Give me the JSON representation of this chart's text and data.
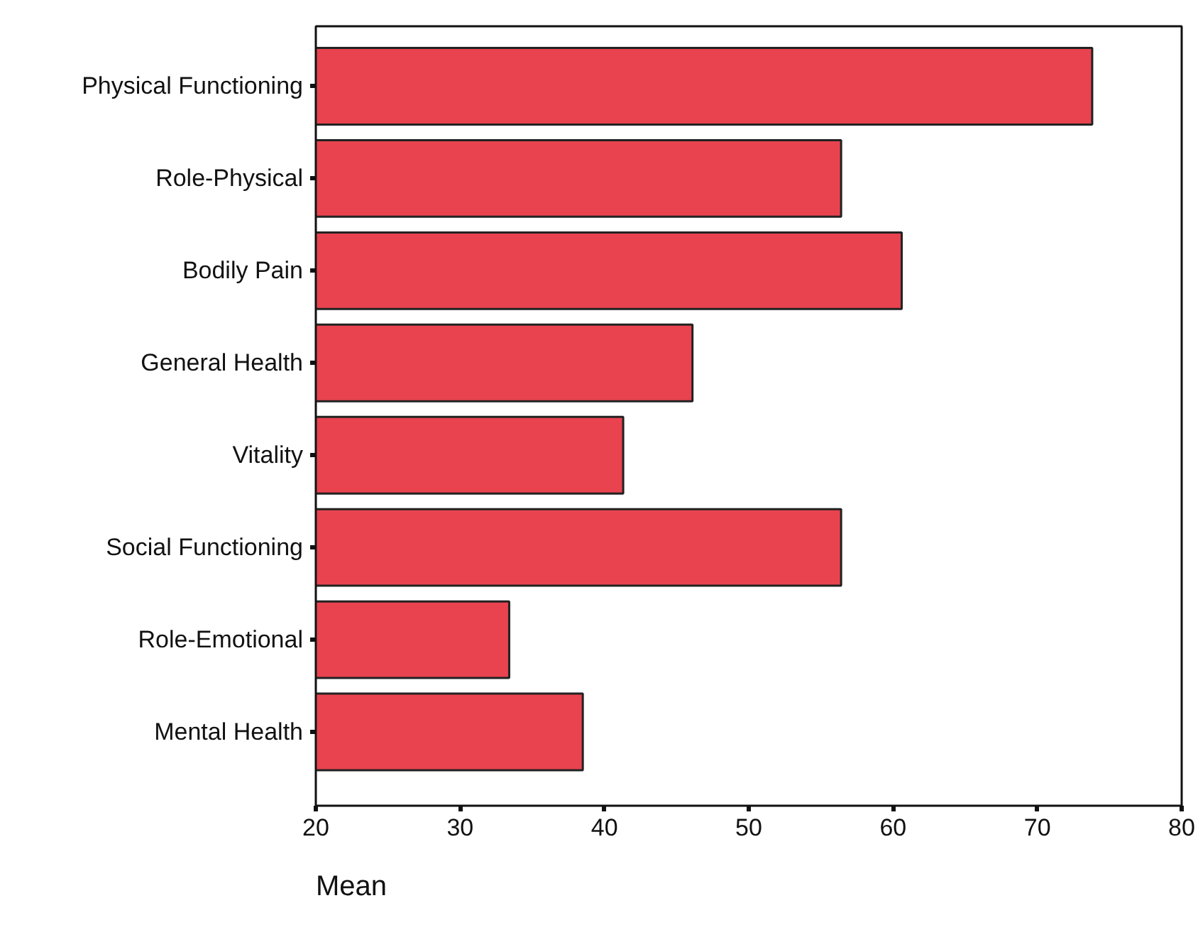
{
  "chart_data": {
    "type": "bar",
    "orientation": "horizontal",
    "xlabel": "Mean",
    "categories": [
      "Physical Functioning",
      "Role-Physical",
      "Bodily Pain",
      "General Health",
      "Vitality",
      "Social Functioning",
      "Role-Emotional",
      "Mental Health"
    ],
    "values": [
      73.8,
      56.4,
      60.6,
      46.1,
      41.3,
      56.4,
      33.4,
      38.5
    ],
    "color": "#e8434f",
    "xlim": [
      20,
      80
    ],
    "xticks": [
      20,
      30,
      40,
      50,
      60,
      70,
      80
    ],
    "grid": false
  }
}
